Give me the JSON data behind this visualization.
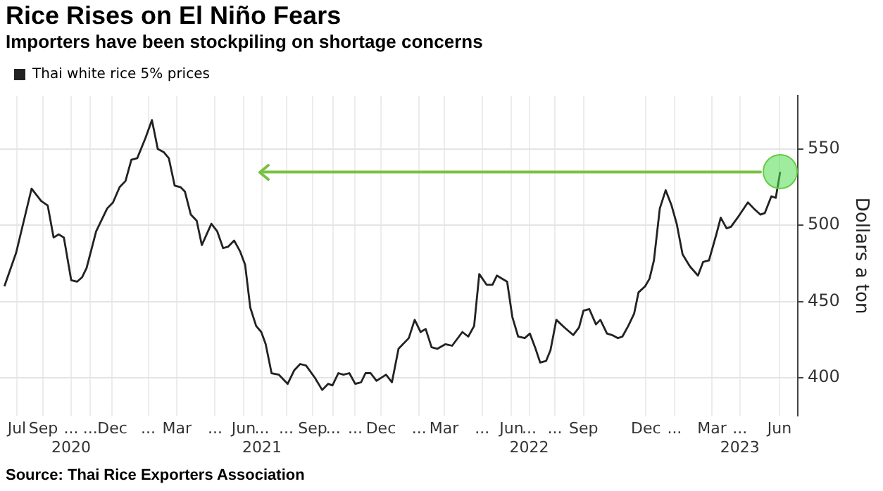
{
  "chart_data": {
    "type": "line",
    "title": "Rice Rises on El Niño Fears",
    "subtitle": "Importers have been stockpiling on shortage concerns",
    "ylabel": "Dollars a ton",
    "annotations": [
      "Source: Thai Rice Exporters Association"
    ],
    "x": [
      "2020-07-10",
      "2020-07-26",
      "2020-08-16",
      "2020-08-29",
      "2020-09-07",
      "2020-09-15",
      "2020-09-22",
      "2020-09-29",
      "2020-10-09",
      "2020-10-17",
      "2020-10-24",
      "2020-10-30",
      "2020-11-12",
      "2020-11-27",
      "2020-12-05",
      "2020-12-14",
      "2020-12-22",
      "2020-12-30",
      "2021-01-07",
      "2021-01-18",
      "2021-01-27",
      "2021-02-04",
      "2021-02-12",
      "2021-02-19",
      "2021-02-27",
      "2021-03-07",
      "2021-03-13",
      "2021-03-21",
      "2021-03-29",
      "2021-04-05",
      "2021-04-18",
      "2021-04-26",
      "2021-05-04",
      "2021-05-11",
      "2021-05-19",
      "2021-05-27",
      "2021-06-03",
      "2021-06-10",
      "2021-06-18",
      "2021-06-25",
      "2021-07-01",
      "2021-07-09",
      "2021-07-19",
      "2021-07-31",
      "2021-08-09",
      "2021-08-17",
      "2021-08-25",
      "2021-09-06",
      "2021-09-16",
      "2021-09-24",
      "2021-09-30",
      "2021-10-08",
      "2021-10-15",
      "2021-10-23",
      "2021-10-31",
      "2021-11-08",
      "2021-11-14",
      "2021-11-21",
      "2021-11-29",
      "2021-12-12",
      "2021-12-20",
      "2021-12-29",
      "2022-01-12",
      "2022-01-20",
      "2022-01-28",
      "2022-02-04",
      "2022-02-12",
      "2022-02-20",
      "2022-03-03",
      "2022-03-12",
      "2022-03-26",
      "2022-04-03",
      "2022-04-11",
      "2022-04-18",
      "2022-04-28",
      "2022-05-06",
      "2022-05-12",
      "2022-05-26",
      "2022-06-02",
      "2022-06-10",
      "2022-06-19",
      "2022-06-26",
      "2022-07-03",
      "2022-07-10",
      "2022-07-18",
      "2022-07-24",
      "2022-08-01",
      "2022-08-12",
      "2022-08-24",
      "2022-09-01",
      "2022-09-07",
      "2022-09-15",
      "2022-09-24",
      "2022-09-30",
      "2022-10-09",
      "2022-10-16",
      "2022-10-24",
      "2022-10-30",
      "2022-11-07",
      "2022-11-15",
      "2022-11-21",
      "2022-11-30",
      "2022-12-06",
      "2022-12-12",
      "2022-12-20",
      "2022-12-28",
      "2023-01-05",
      "2023-01-12",
      "2023-01-20",
      "2023-01-30",
      "2023-02-10",
      "2023-02-17",
      "2023-02-25",
      "2023-03-07",
      "2023-03-13",
      "2023-03-21",
      "2023-03-27",
      "2023-04-05",
      "2023-04-19",
      "2023-04-27",
      "2023-05-06",
      "2023-05-12",
      "2023-05-21",
      "2023-05-27",
      "2023-06-02"
    ],
    "series": [
      {
        "name": "Thai white rice 5% prices",
        "color": "#222222",
        "values": [
          460,
          482,
          524,
          516,
          513,
          492,
          494,
          492,
          464,
          463,
          466,
          472,
          496,
          511,
          515,
          525,
          529,
          543,
          544,
          557,
          569,
          550,
          548,
          544,
          526,
          525,
          522,
          507,
          503,
          487,
          501,
          496,
          485,
          486,
          490,
          483,
          474,
          446,
          434,
          430,
          422,
          403,
          402,
          396,
          405,
          409,
          408,
          400,
          392,
          396,
          395,
          403,
          402,
          403,
          396,
          397,
          403,
          403,
          398,
          402,
          397,
          419,
          426,
          438,
          430,
          432,
          420,
          419,
          422,
          421,
          430,
          427,
          434,
          468,
          461,
          461,
          467,
          463,
          440,
          427,
          426,
          429,
          420,
          410,
          411,
          418,
          438,
          433,
          428,
          433,
          444,
          445,
          435,
          438,
          429,
          428,
          426,
          427,
          434,
          442,
          456,
          460,
          465,
          477,
          511,
          523,
          513,
          501,
          481,
          473,
          467,
          476,
          477,
          494,
          505,
          498,
          499,
          505,
          515,
          511,
          507,
          508,
          519,
          518,
          535
        ]
      }
    ],
    "xlim": [
      "2020-07-04",
      "2023-06-26"
    ],
    "xticks": [
      {
        "value": "2020-07-27",
        "label": "Jul"
      },
      {
        "value": "2020-09-01",
        "label": "Sep"
      },
      {
        "value": "2020-10-09",
        "label": "...\n2020"
      },
      {
        "value": "2020-11-04",
        "label": "..."
      },
      {
        "value": "2020-12-04",
        "label": "Dec"
      },
      {
        "value": "2021-01-22",
        "label": "..."
      },
      {
        "value": "2021-03-02",
        "label": "Mar"
      },
      {
        "value": "2021-04-23",
        "label": "..."
      },
      {
        "value": "2021-06-01",
        "label": "Jun"
      },
      {
        "value": "2021-06-26",
        "label": "...\n2021"
      },
      {
        "value": "2021-07-29",
        "label": "..."
      },
      {
        "value": "2021-09-03",
        "label": "Sep"
      },
      {
        "value": "2021-10-01",
        "label": "..."
      },
      {
        "value": "2021-10-31",
        "label": "..."
      },
      {
        "value": "2021-12-05",
        "label": "Dec"
      },
      {
        "value": "2022-01-26",
        "label": "..."
      },
      {
        "value": "2022-03-01",
        "label": "Mar"
      },
      {
        "value": "2022-04-22",
        "label": "..."
      },
      {
        "value": "2022-06-01",
        "label": "Jun"
      },
      {
        "value": "2022-06-25",
        "label": "...\n2022"
      },
      {
        "value": "2022-07-30",
        "label": "..."
      },
      {
        "value": "2022-09-07",
        "label": "Sep"
      },
      {
        "value": "2022-12-01",
        "label": "Dec"
      },
      {
        "value": "2023-01-09",
        "label": "..."
      },
      {
        "value": "2023-03-01",
        "label": "Mar"
      },
      {
        "value": "2023-04-08",
        "label": "...\n2023"
      },
      {
        "value": "2023-06-01",
        "label": "Jun"
      }
    ],
    "ref_lines": [
      {
        "axis": "y",
        "value": 535,
        "color": "#7ac143"
      }
    ],
    "ylim": [
      375,
      585
    ],
    "yticks": [
      400,
      450,
      500,
      550
    ],
    "grid": true,
    "legend": "top left",
    "marker": "none",
    "line_style": "solid"
  }
}
